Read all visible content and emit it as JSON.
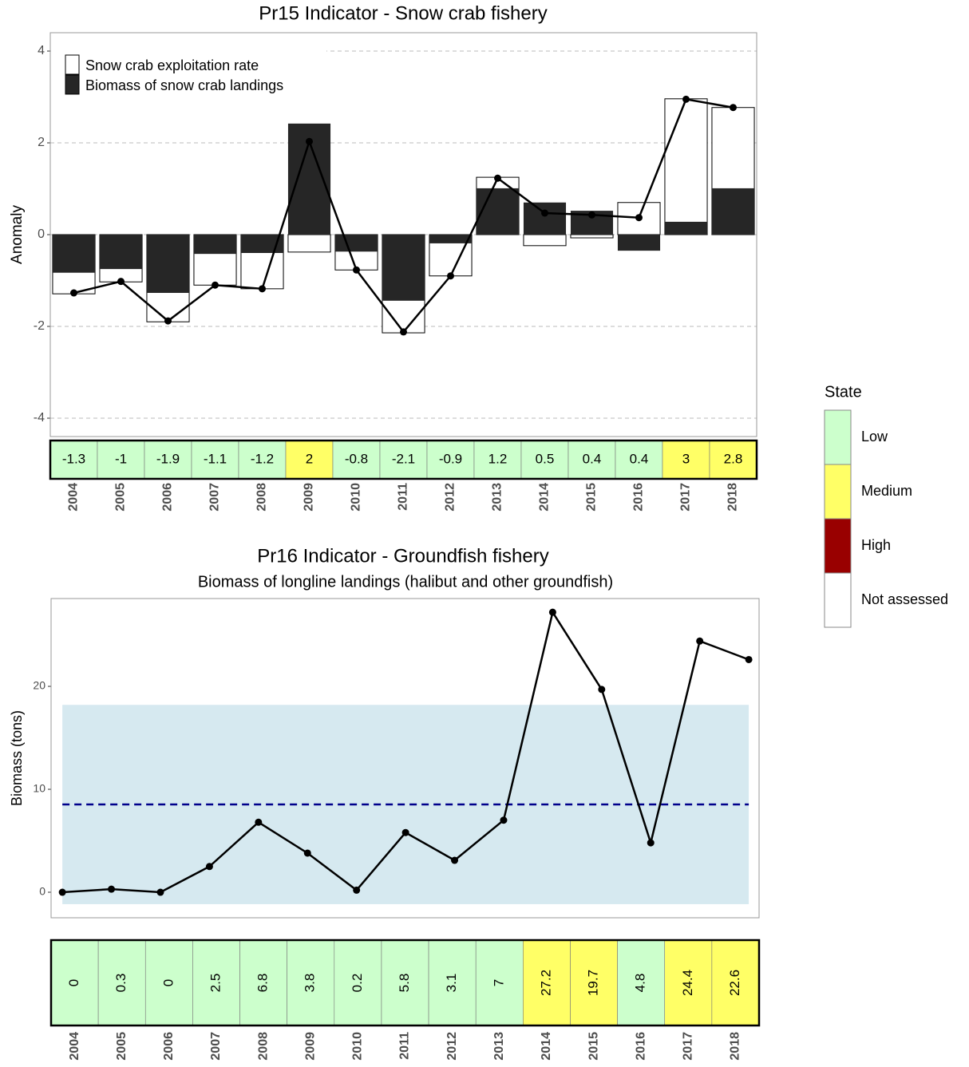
{
  "chart_data": [
    {
      "type": "bar",
      "title": "Pr15 Indicator - Snow crab fishery",
      "y_label": "Anomaly",
      "categories": [
        "2004",
        "2005",
        "2006",
        "2007",
        "2008",
        "2009",
        "2010",
        "2011",
        "2012",
        "2013",
        "2014",
        "2015",
        "2016",
        "2017",
        "2018"
      ],
      "series": [
        {
          "name": "Snow crab exploitation rate",
          "color": "#ffffff",
          "values": [
            -1.29,
            -1.03,
            -1.9,
            -1.1,
            -1.18,
            -0.38,
            -0.77,
            -2.14,
            -0.9,
            1.25,
            -0.24,
            -0.07,
            0.7,
            2.96,
            2.77
          ]
        },
        {
          "name": "Biomass of snow crab landings",
          "color": "#262626",
          "values": [
            -0.83,
            -0.75,
            -1.27,
            -0.42,
            -0.4,
            2.42,
            -0.37,
            -1.44,
            -0.19,
            1.01,
            0.7,
            0.52,
            -0.35,
            0.28,
            1.01
          ]
        }
      ],
      "ylim": [
        -4.4,
        4.4
      ],
      "yticks": [
        -4,
        -2,
        0,
        2,
        4
      ],
      "grid": true,
      "legend": "top-left",
      "index": {
        "color": "#000000",
        "values": [
          -1.27,
          -1.02,
          -1.88,
          -1.1,
          -1.18,
          2.03,
          -0.77,
          -2.12,
          -0.9,
          1.23,
          0.47,
          0.43,
          0.37,
          2.95,
          2.77
        ],
        "value_labels": [
          "-1.3",
          "-1",
          "-1.9",
          "-1.1",
          "-1.2",
          "2",
          "-0.8",
          "-2.1",
          "-0.9",
          "1.2",
          "0.5",
          "0.4",
          "0.4",
          "3",
          "2.8"
        ],
        "states": [
          "Low",
          "Low",
          "Low",
          "Low",
          "Low",
          "Medium",
          "Low",
          "Low",
          "Low",
          "Low",
          "Low",
          "Low",
          "Low",
          "Medium",
          "Medium"
        ]
      }
    },
    {
      "type": "line",
      "title": "Pr16 Indicator - Groundfish fishery",
      "subtitle": "Biomass of longline landings (halibut and other groundfish)",
      "y_label": "Biomass (tons)",
      "x": [
        2004,
        2005,
        2006,
        2007,
        2008,
        2009,
        2010,
        2011,
        2012,
        2013,
        2014,
        2015,
        2016,
        2017,
        2018
      ],
      "values": [
        0,
        0.3,
        0,
        2.5,
        6.8,
        3.8,
        0.2,
        5.8,
        3.1,
        7,
        27.2,
        19.7,
        4.8,
        24.4,
        22.6
      ],
      "color": "#000000",
      "xlim": [
        2003.77,
        2018.21
      ],
      "ylim": [
        -2.48,
        28.53
      ],
      "yticks": [
        0,
        10,
        20
      ],
      "band": [
        -1.16,
        18.2
      ],
      "band_color": "#d6e9f0",
      "mean": 8.53,
      "mean_color": "#00008b",
      "states": [
        "Low",
        "Low",
        "Low",
        "Low",
        "Low",
        "Low",
        "Low",
        "Low",
        "Low",
        "Low",
        "Medium",
        "Medium",
        "Low",
        "Medium",
        "Medium"
      ]
    }
  ],
  "state_legend": {
    "title": "State",
    "items": [
      {
        "label": "Low",
        "color": "#ccffcc"
      },
      {
        "label": "Medium",
        "color": "#ffff66"
      },
      {
        "label": "High",
        "color": "#990000"
      },
      {
        "label": "Not assessed",
        "color": "#ffffff"
      }
    ]
  }
}
